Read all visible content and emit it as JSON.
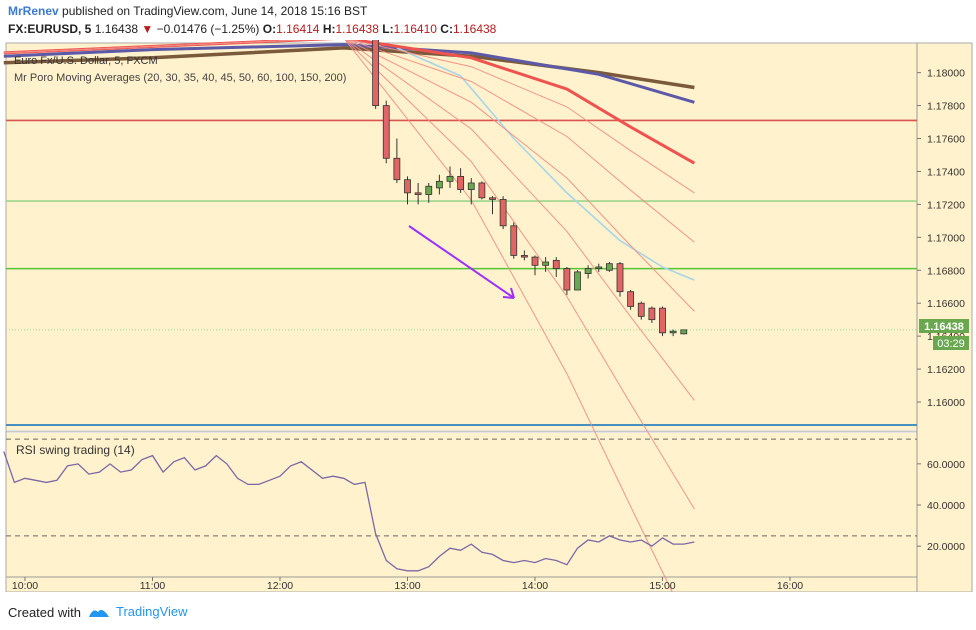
{
  "header": {
    "author": "MrRenev",
    "published": "published on TradingView.com, June 14, 2018 15:16 BST",
    "symbol": "FX:EURUSD, 5",
    "last": "1.16438",
    "change_arrow": "▼",
    "change": "−0.01476 (−1.25%)",
    "o_label": "O:",
    "o": "1.16414",
    "h_label": "H:",
    "h": "1.16438",
    "l_label": "L:",
    "l": "1.16410",
    "c_label": "C:",
    "c": "1.16438"
  },
  "legend": {
    "series_title": "Euro Fx/U.S. Dollar, 5, FXCM",
    "ma_title": "Mr Poro Moving Averages (20, 30, 35, 40, 45, 50, 60, 100, 150, 200)"
  },
  "price_badge": "1.16438",
  "time_badge": "03:29",
  "rsi_title": "RSI swing trading (14)",
  "footer": {
    "created": "Created with",
    "brand": "TradingView"
  },
  "colors": {
    "bg": "#fff2cc",
    "bull": "#6aa84f",
    "bear": "#e06666",
    "rsi": "#7a68a6",
    "arrow": "#9b30ff",
    "hline_red": "#d9534f",
    "hline_green": "#55c535",
    "hline_lightgreen": "#9bd68d",
    "hline_blue": "#4a8fc2",
    "ma_fast": "#ef5350",
    "ma_slow_blue": "#5c5aa8",
    "ma_slow_brown": "#7a5a3a",
    "ma_lightblue": "#a9d4e8",
    "badge": "#6aa84f"
  },
  "chart_data": {
    "type": "candlestick",
    "price_axis_ticks": [
      "1.18000",
      "1.17800",
      "1.17600",
      "1.17400",
      "1.17200",
      "1.17000",
      "1.16800",
      "1.16600",
      "1.16400",
      "1.16200",
      "1.16000"
    ],
    "time_axis_ticks": [
      "10:00",
      "11:00",
      "12:00",
      "13:00",
      "14:00",
      "15:00",
      "16:00"
    ],
    "rsi_axis_ticks": [
      "60.0000",
      "40.0000",
      "20.0000"
    ],
    "price_range": [
      1.1583,
      1.1818
    ],
    "rsi_range": [
      5,
      75
    ],
    "horizontal_levels": [
      {
        "price": 1.1771,
        "color": "red"
      },
      {
        "price": 1.1722,
        "color": "lightgreen"
      },
      {
        "price": 1.1681,
        "color": "green"
      },
      {
        "price": 1.1586,
        "color": "blue"
      },
      {
        "price": 1.16438,
        "color": "lightgreen-dotted"
      }
    ],
    "candles": [
      {
        "t": "12:45",
        "o": 1.183,
        "h": 1.1832,
        "l": 1.1778,
        "c": 1.178
      },
      {
        "t": "12:50",
        "o": 1.178,
        "h": 1.1783,
        "l": 1.1745,
        "c": 1.1748
      },
      {
        "t": "12:55",
        "o": 1.1748,
        "h": 1.176,
        "l": 1.1733,
        "c": 1.1735
      },
      {
        "t": "13:00",
        "o": 1.1735,
        "h": 1.1737,
        "l": 1.172,
        "c": 1.1727
      },
      {
        "t": "13:05",
        "o": 1.1727,
        "h": 1.1733,
        "l": 1.172,
        "c": 1.1726
      },
      {
        "t": "13:10",
        "o": 1.1726,
        "h": 1.1733,
        "l": 1.1721,
        "c": 1.1731
      },
      {
        "t": "13:15",
        "o": 1.173,
        "h": 1.1738,
        "l": 1.1726,
        "c": 1.1734
      },
      {
        "t": "13:20",
        "o": 1.1734,
        "h": 1.1743,
        "l": 1.173,
        "c": 1.1737
      },
      {
        "t": "13:25",
        "o": 1.1737,
        "h": 1.1742,
        "l": 1.1727,
        "c": 1.1729
      },
      {
        "t": "13:30",
        "o": 1.1729,
        "h": 1.1736,
        "l": 1.172,
        "c": 1.1733
      },
      {
        "t": "13:35",
        "o": 1.1733,
        "h": 1.1734,
        "l": 1.1723,
        "c": 1.1724
      },
      {
        "t": "13:40",
        "o": 1.1724,
        "h": 1.1725,
        "l": 1.1714,
        "c": 1.1723
      },
      {
        "t": "13:45",
        "o": 1.1723,
        "h": 1.1725,
        "l": 1.1705,
        "c": 1.1707
      },
      {
        "t": "13:50",
        "o": 1.1707,
        "h": 1.1709,
        "l": 1.1687,
        "c": 1.1689
      },
      {
        "t": "13:55",
        "o": 1.1689,
        "h": 1.1692,
        "l": 1.1686,
        "c": 1.1688
      },
      {
        "t": "14:00",
        "o": 1.1688,
        "h": 1.1689,
        "l": 1.1677,
        "c": 1.1683
      },
      {
        "t": "14:05",
        "o": 1.1683,
        "h": 1.1688,
        "l": 1.1679,
        "c": 1.1685
      },
      {
        "t": "14:10",
        "o": 1.1686,
        "h": 1.1688,
        "l": 1.1676,
        "c": 1.1681
      },
      {
        "t": "14:15",
        "o": 1.1681,
        "h": 1.1682,
        "l": 1.1665,
        "c": 1.1668
      },
      {
        "t": "14:20",
        "o": 1.1668,
        "h": 1.168,
        "l": 1.1668,
        "c": 1.1679
      },
      {
        "t": "14:25",
        "o": 1.1678,
        "h": 1.1683,
        "l": 1.1675,
        "c": 1.1681
      },
      {
        "t": "14:30",
        "o": 1.1681,
        "h": 1.1684,
        "l": 1.1679,
        "c": 1.1682
      },
      {
        "t": "14:35",
        "o": 1.168,
        "h": 1.1685,
        "l": 1.1679,
        "c": 1.1684
      },
      {
        "t": "14:40",
        "o": 1.1684,
        "h": 1.1685,
        "l": 1.1664,
        "c": 1.1667
      },
      {
        "t": "14:45",
        "o": 1.1667,
        "h": 1.1668,
        "l": 1.1656,
        "c": 1.1658
      },
      {
        "t": "14:50",
        "o": 1.166,
        "h": 1.1661,
        "l": 1.165,
        "c": 1.1652
      },
      {
        "t": "14:55",
        "o": 1.1657,
        "h": 1.1658,
        "l": 1.1648,
        "c": 1.165
      },
      {
        "t": "15:00",
        "o": 1.1657,
        "h": 1.1658,
        "l": 1.164,
        "c": 1.1642
      },
      {
        "t": "15:05",
        "o": 1.1642,
        "h": 1.1644,
        "l": 1.164,
        "c": 1.1643
      },
      {
        "t": "15:10",
        "o": 1.16414,
        "h": 1.16438,
        "l": 1.1641,
        "c": 1.16438
      }
    ],
    "moving_averages": [
      {
        "name": "MA200",
        "color": "brown",
        "points": [
          [
            "09:50",
            1.1806
          ],
          [
            "11:00",
            1.1809
          ],
          [
            "12:30",
            1.1815
          ],
          [
            "13:30",
            1.181
          ],
          [
            "14:30",
            1.18
          ],
          [
            "15:15",
            1.1791
          ]
        ]
      },
      {
        "name": "MA150",
        "color": "blue",
        "points": [
          [
            "09:50",
            1.181
          ],
          [
            "11:00",
            1.1814
          ],
          [
            "12:30",
            1.1817
          ],
          [
            "13:30",
            1.1812
          ],
          [
            "14:30",
            1.1799
          ],
          [
            "15:15",
            1.1782
          ]
        ]
      },
      {
        "name": "MA20",
        "color": "lightblue",
        "points": [
          [
            "12:55",
            1.1815
          ],
          [
            "13:25",
            1.1798
          ],
          [
            "13:50",
            1.176
          ],
          [
            "14:15",
            1.1727
          ],
          [
            "14:40",
            1.1698
          ],
          [
            "15:00",
            1.1682
          ],
          [
            "15:15",
            1.1674
          ]
        ]
      },
      {
        "name": "MA100",
        "color": "red",
        "points": [
          [
            "09:50",
            1.1812
          ],
          [
            "12:30",
            1.1821
          ],
          [
            "13:30",
            1.1809
          ],
          [
            "14:15",
            1.179
          ],
          [
            "14:45",
            1.1767
          ],
          [
            "15:15",
            1.1745
          ]
        ]
      }
    ],
    "rsi": [
      [
        "09:50",
        66
      ],
      [
        "09:55",
        51
      ],
      [
        "10:00",
        53
      ],
      [
        "10:05",
        52
      ],
      [
        "10:10",
        51
      ],
      [
        "10:15",
        52
      ],
      [
        "10:20",
        59
      ],
      [
        "10:25",
        60
      ],
      [
        "10:30",
        55
      ],
      [
        "10:35",
        56
      ],
      [
        "10:40",
        60
      ],
      [
        "10:45",
        56
      ],
      [
        "10:50",
        57
      ],
      [
        "10:55",
        62
      ],
      [
        "11:00",
        64
      ],
      [
        "11:05",
        56
      ],
      [
        "11:10",
        61
      ],
      [
        "11:15",
        63
      ],
      [
        "11:20",
        57
      ],
      [
        "11:25",
        59
      ],
      [
        "11:30",
        64
      ],
      [
        "11:35",
        60
      ],
      [
        "11:40",
        53
      ],
      [
        "11:45",
        50
      ],
      [
        "11:50",
        50
      ],
      [
        "11:55",
        52
      ],
      [
        "12:00",
        54
      ],
      [
        "12:05",
        59
      ],
      [
        "12:10",
        61
      ],
      [
        "12:15",
        57
      ],
      [
        "12:20",
        53
      ],
      [
        "12:25",
        54
      ],
      [
        "12:30",
        53
      ],
      [
        "12:35",
        50
      ],
      [
        "12:40",
        51
      ],
      [
        "12:45",
        26
      ],
      [
        "12:50",
        13
      ],
      [
        "12:55",
        9
      ],
      [
        "13:00",
        8
      ],
      [
        "13:05",
        8
      ],
      [
        "13:10",
        10
      ],
      [
        "13:15",
        15
      ],
      [
        "13:20",
        19
      ],
      [
        "13:25",
        18
      ],
      [
        "13:30",
        21
      ],
      [
        "13:35",
        17
      ],
      [
        "13:40",
        16
      ],
      [
        "13:45",
        13
      ],
      [
        "13:50",
        12
      ],
      [
        "13:55",
        13
      ],
      [
        "14:00",
        12
      ],
      [
        "14:05",
        14
      ],
      [
        "14:10",
        13
      ],
      [
        "14:15",
        11
      ],
      [
        "14:20",
        19
      ],
      [
        "14:25",
        23
      ],
      [
        "14:30",
        22
      ],
      [
        "14:35",
        25
      ],
      [
        "14:40",
        23
      ],
      [
        "14:45",
        22
      ],
      [
        "14:50",
        23
      ],
      [
        "14:55",
        20
      ],
      [
        "15:00",
        24
      ],
      [
        "15:05",
        21
      ],
      [
        "15:10",
        21
      ],
      [
        "15:15",
        22
      ]
    ],
    "rsi_levels": [
      72,
      25
    ]
  }
}
